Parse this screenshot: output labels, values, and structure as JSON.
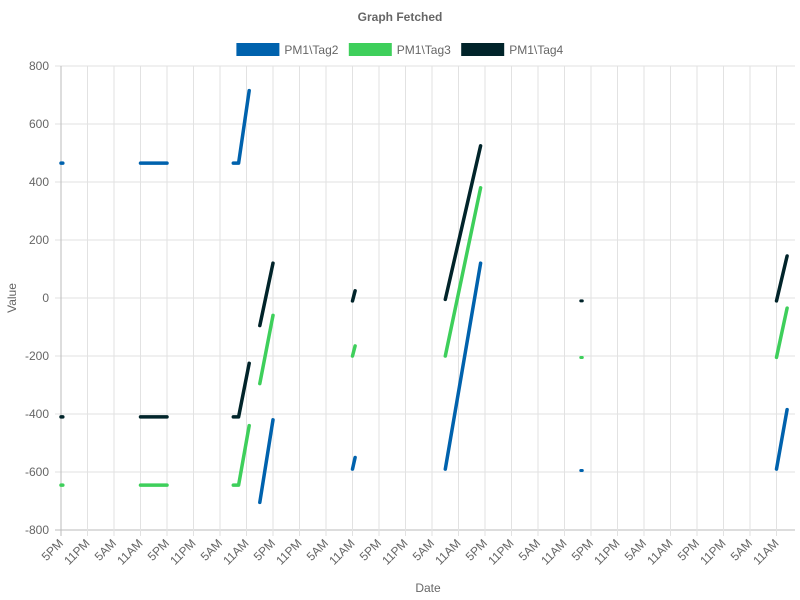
{
  "chart_data": {
    "type": "line",
    "title": "Graph Fetched",
    "xlabel": "Date",
    "ylabel": "Value",
    "ylim": [
      -800,
      800
    ],
    "yticks": [
      -800,
      -600,
      -400,
      -200,
      0,
      200,
      400,
      600,
      800
    ],
    "xticks": [
      "5PM",
      "11PM",
      "5AM",
      "11AM",
      "5PM",
      "11PM",
      "5AM",
      "11AM",
      "5PM",
      "11PM",
      "5AM",
      "11AM",
      "5PM",
      "11PM",
      "5AM",
      "11AM",
      "5PM",
      "11PM",
      "5AM",
      "11AM",
      "5PM",
      "11PM",
      "5AM",
      "11AM",
      "5PM",
      "11PM",
      "5AM",
      "11AM"
    ],
    "x_unit": "hours",
    "xlim": [
      0,
      164.4
    ],
    "grid": true,
    "legend_position": "top",
    "series": [
      {
        "name": "PM1\\Tag2",
        "color": "#0062ad",
        "segments": [
          [
            [
              0,
              465
            ],
            [
              0.4,
              465
            ]
          ],
          [
            [
              18,
              465
            ],
            [
              24,
              465
            ]
          ],
          [
            [
              39,
              465
            ],
            [
              40.2,
              465
            ],
            [
              42.6,
              715
            ]
          ],
          [
            [
              45,
              -705
            ],
            [
              48,
              -420
            ]
          ],
          [
            [
              66,
              -590
            ],
            [
              66.6,
              -550
            ]
          ],
          [
            [
              87,
              -590
            ],
            [
              95,
              120
            ]
          ],
          [
            [
              117.8,
              -595
            ]
          ],
          [
            [
              162,
              -590
            ],
            [
              164.4,
              -385
            ]
          ]
        ]
      },
      {
        "name": "PM1\\Tag3",
        "color": "#3ecf5b",
        "segments": [
          [
            [
              0,
              -645
            ],
            [
              0.4,
              -645
            ]
          ],
          [
            [
              18,
              -645
            ],
            [
              24,
              -645
            ]
          ],
          [
            [
              39,
              -645
            ],
            [
              40.2,
              -645
            ],
            [
              42.6,
              -440
            ]
          ],
          [
            [
              45,
              -295
            ],
            [
              48,
              -60
            ]
          ],
          [
            [
              66,
              -200
            ],
            [
              66.6,
              -165
            ]
          ],
          [
            [
              87,
              -200
            ],
            [
              95,
              380
            ]
          ],
          [
            [
              117.8,
              -205
            ]
          ],
          [
            [
              162,
              -205
            ],
            [
              164.4,
              -35
            ]
          ]
        ]
      },
      {
        "name": "PM1\\Tag4",
        "color": "#01242a",
        "segments": [
          [
            [
              0,
              -410
            ],
            [
              0.4,
              -410
            ]
          ],
          [
            [
              18,
              -410
            ],
            [
              24,
              -410
            ]
          ],
          [
            [
              39,
              -410
            ],
            [
              40.2,
              -410
            ],
            [
              42.6,
              -225
            ]
          ],
          [
            [
              45,
              -95
            ],
            [
              48,
              120
            ]
          ],
          [
            [
              66,
              -10
            ],
            [
              66.6,
              25
            ]
          ],
          [
            [
              87,
              -5
            ],
            [
              95,
              525
            ]
          ],
          [
            [
              117.8,
              -10
            ]
          ],
          [
            [
              162,
              -10
            ],
            [
              164.4,
              145
            ]
          ]
        ]
      }
    ]
  }
}
